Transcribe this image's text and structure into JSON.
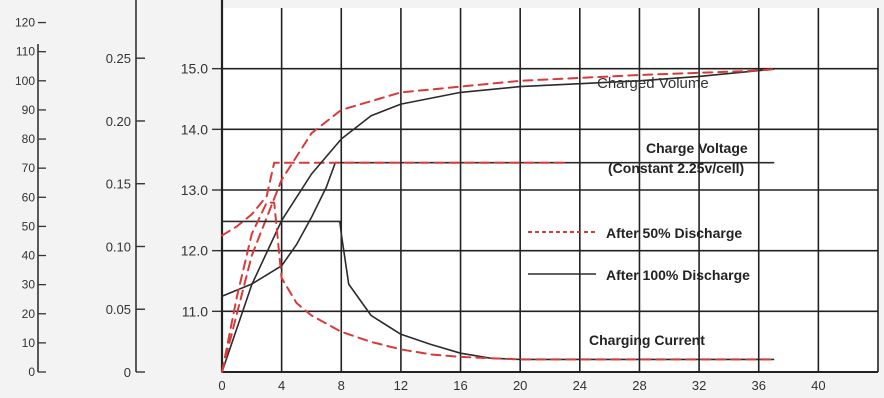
{
  "chart_data": {
    "type": "line",
    "x_axis": {
      "range": [
        0,
        44
      ],
      "ticks": [
        0,
        4,
        8,
        12,
        16,
        20,
        24,
        28,
        32,
        36,
        40
      ]
    },
    "axes": {
      "capacity": {
        "range": [
          0,
          125
        ],
        "ticks": [
          0,
          10,
          20,
          30,
          40,
          50,
          60,
          70,
          80,
          90,
          100,
          110,
          120
        ]
      },
      "current": {
        "range": [
          0,
          0.29
        ],
        "ticks": [
          0,
          0.05,
          0.1,
          0.15,
          0.2,
          0.25
        ],
        "tick_labels": [
          "0",
          "0.05",
          "0.10",
          "0.15",
          "0.20",
          "0.25"
        ]
      },
      "voltage": {
        "range": [
          10.0,
          16.0
        ],
        "ticks": [
          11.0,
          12.0,
          13.0,
          14.0,
          15.0
        ],
        "tick_labels": [
          "11.0",
          "12.0",
          "13.0",
          "14.0",
          "15.0"
        ]
      }
    },
    "grid": true,
    "colors": {
      "after_50": "#d83a3a",
      "after_100": "#2b2b2b",
      "grid": "#222222",
      "background": "#f3f3f3"
    },
    "annotations": {
      "charged_volume": "Charged Volume",
      "charge_voltage_1": "Charge Voltage",
      "charge_voltage_2": "(Constant 2.25v/cell)",
      "charging_current": "Charging Current"
    },
    "legend": [
      {
        "label": "After 50% Discharge",
        "style": "dashed",
        "color": "#d83a3a"
      },
      {
        "label": "After 100% Discharge",
        "style": "solid",
        "color": "#2b2b2b"
      }
    ],
    "series": [
      {
        "name": "After 100% Discharge",
        "quantity": "Charge Voltage",
        "axis": "voltage",
        "style": "solid",
        "x": [
          0,
          2,
          4,
          5,
          6,
          7,
          7.6,
          7.9,
          8,
          37
        ],
        "y": [
          11.25,
          11.45,
          11.75,
          12.1,
          12.55,
          13.05,
          13.45,
          13.45,
          13.45,
          13.45
        ]
      },
      {
        "name": "After 50% Discharge",
        "quantity": "Charge Voltage",
        "axis": "voltage",
        "style": "dashed",
        "x": [
          0,
          1,
          2,
          3,
          3.5,
          4,
          6,
          8,
          23
        ],
        "y": [
          12.25,
          12.4,
          12.6,
          12.9,
          13.45,
          13.45,
          13.45,
          13.45,
          13.45
        ]
      },
      {
        "name": "After 100% Discharge",
        "quantity": "Charged Volume",
        "axis": "capacity",
        "style": "solid",
        "x": [
          0,
          2,
          4,
          6,
          8,
          10,
          12,
          16,
          20,
          24,
          28,
          32,
          37
        ],
        "y": [
          0,
          30,
          52,
          68,
          80,
          88,
          92,
          96,
          98,
          99,
          100,
          101.5,
          104
        ]
      },
      {
        "name": "After 50% Discharge",
        "quantity": "Charged Volume",
        "axis": "capacity",
        "style": "dashed",
        "x": [
          0,
          2,
          4,
          6,
          8,
          12,
          16,
          20,
          28,
          36,
          37
        ],
        "y": [
          0,
          40,
          66,
          82,
          90,
          96,
          98,
          100,
          102,
          103.5,
          104
        ]
      },
      {
        "name": "After 100% Discharge",
        "quantity": "Charging Current",
        "axis": "current",
        "style": "solid",
        "x": [
          0,
          7.9,
          8,
          8.5,
          10,
          12,
          14,
          16,
          18,
          20,
          24,
          37
        ],
        "y": [
          0.12,
          0.12,
          0.11,
          0.07,
          0.045,
          0.03,
          0.022,
          0.015,
          0.011,
          0.01,
          0.01,
          0.01
        ]
      },
      {
        "name": "After 50% Discharge",
        "quantity": "Charging Current",
        "axis": "current",
        "style": "dashed",
        "x": [
          0,
          1,
          2,
          3,
          3.5,
          4,
          5,
          6,
          8,
          10,
          12,
          14,
          16,
          20,
          37
        ],
        "y": [
          0.0,
          0.06,
          0.11,
          0.135,
          0.135,
          0.075,
          0.055,
          0.045,
          0.032,
          0.024,
          0.018,
          0.014,
          0.012,
          0.01,
          0.01
        ]
      }
    ]
  }
}
